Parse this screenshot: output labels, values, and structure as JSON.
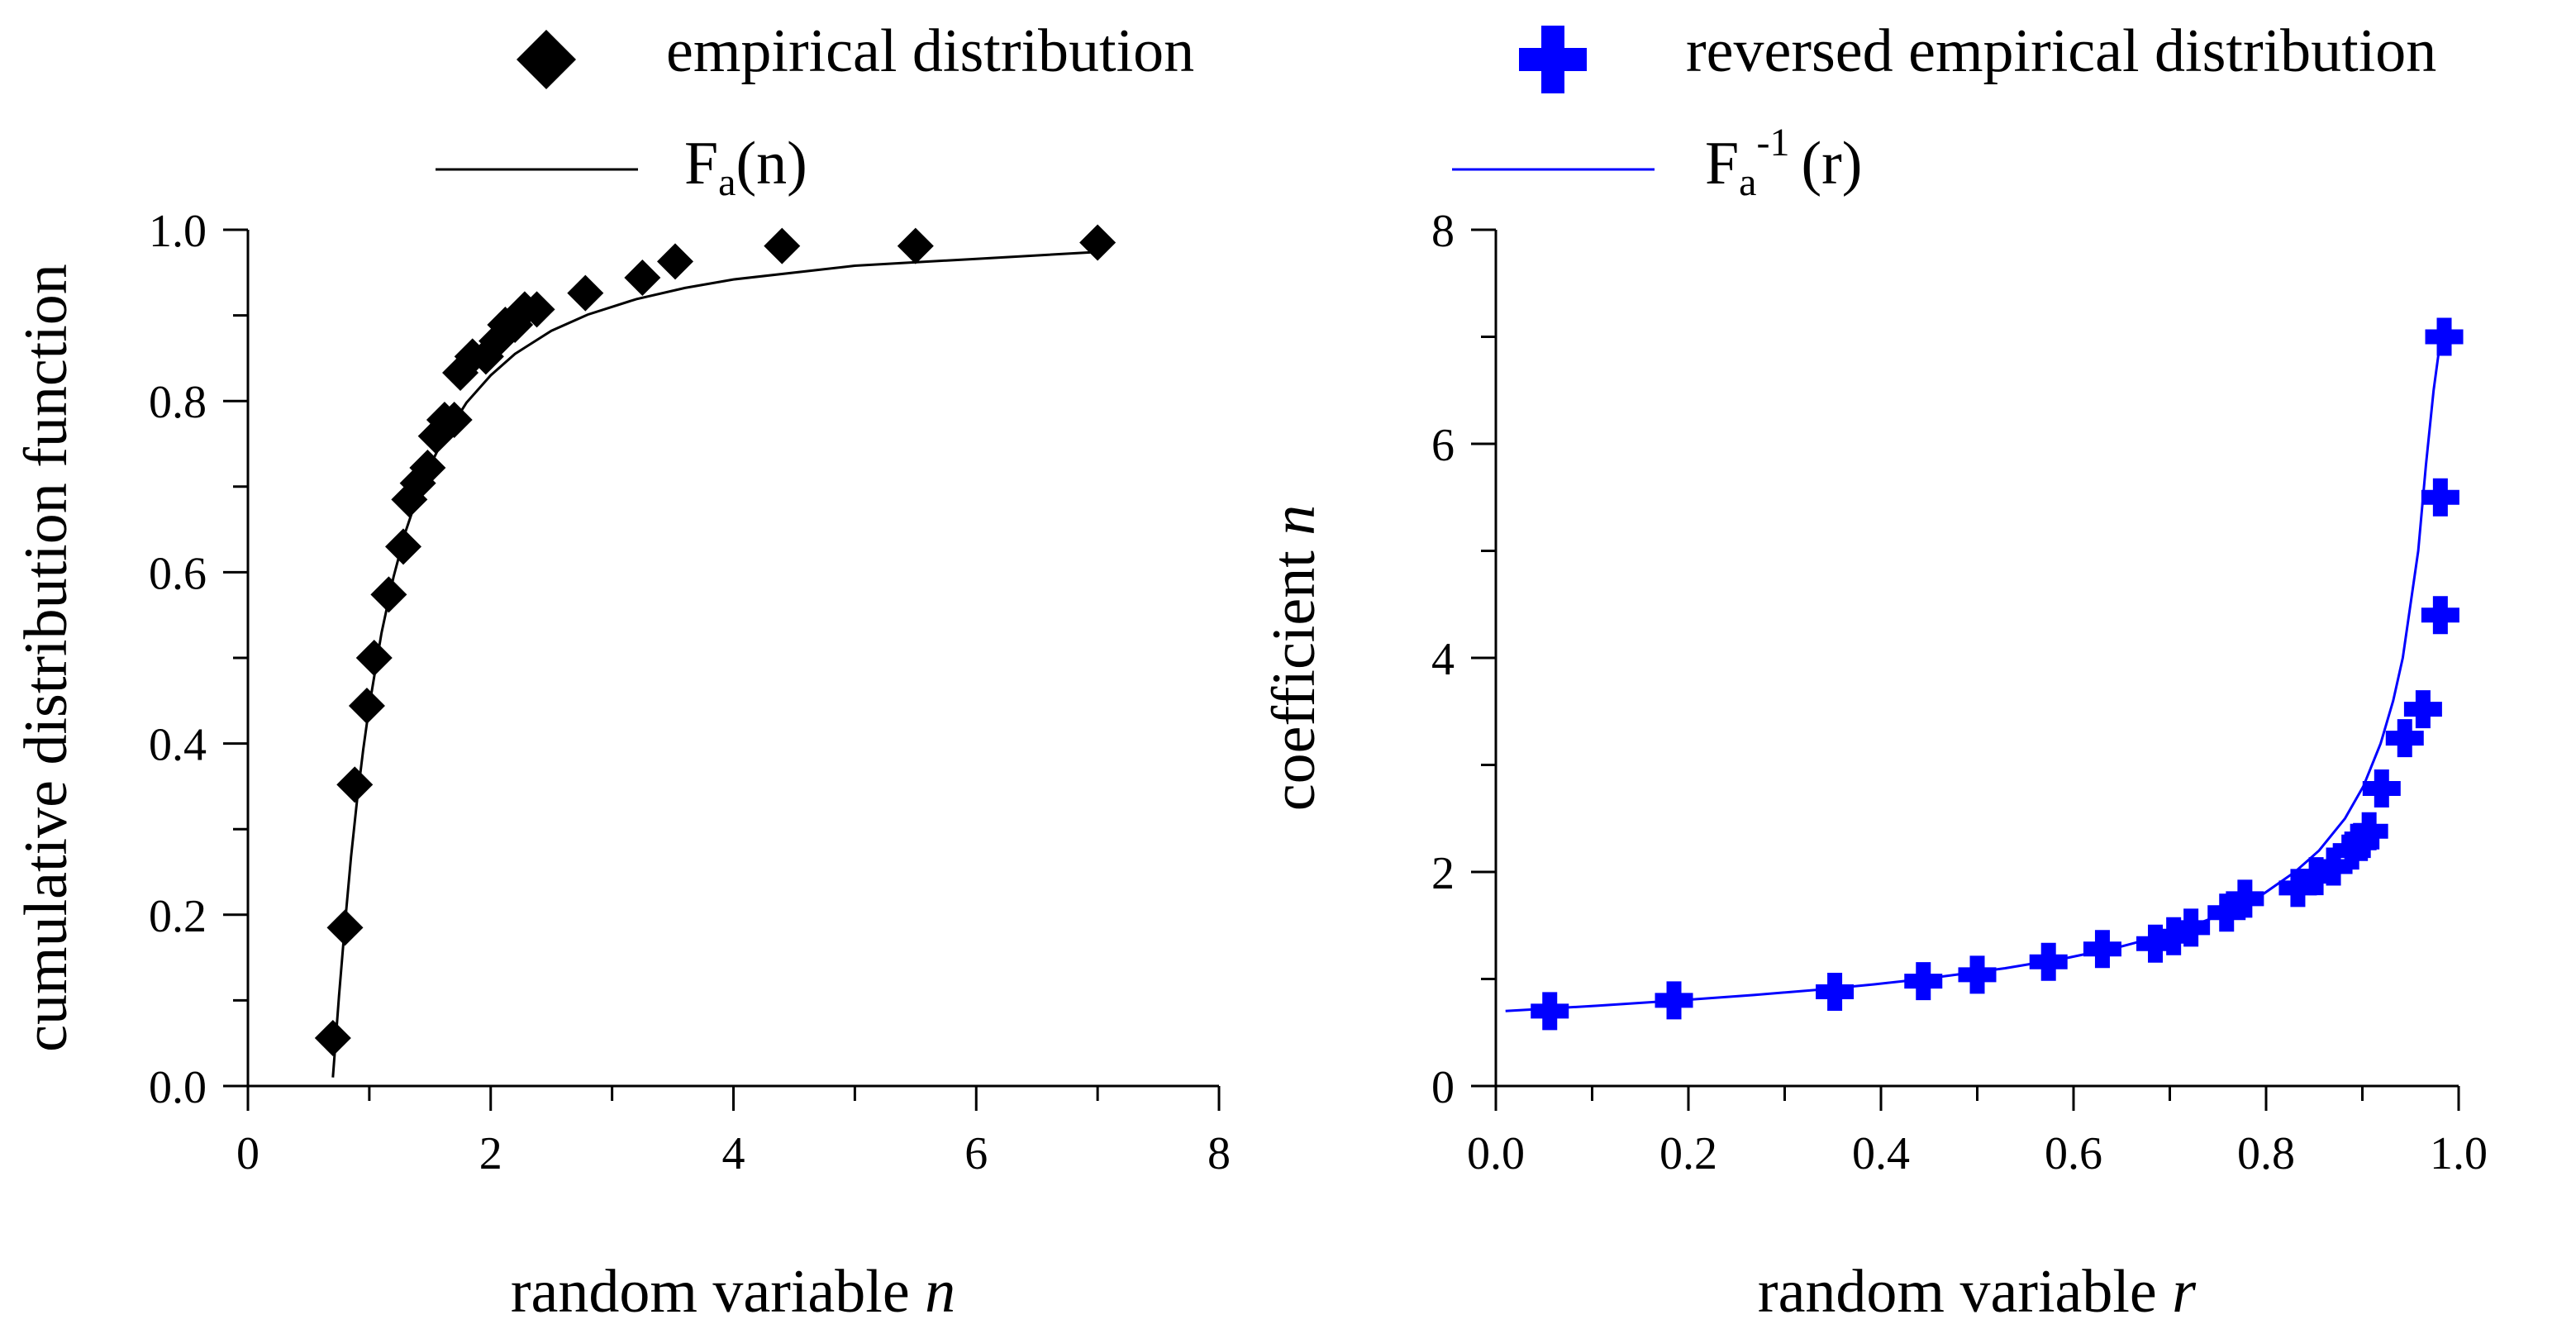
{
  "legend": {
    "left_marker_label": "empirical distribution",
    "left_line_label": "F",
    "left_line_label_sub": "a",
    "left_line_label_arg": "(n)",
    "right_marker_label": "reversed empirical distribution",
    "right_line_label": "F",
    "right_line_label_sub": "a",
    "right_line_label_sup": "-1",
    "right_line_label_arg": "(r)"
  },
  "colors": {
    "left_series": "#000000",
    "right_series": "#0000ff",
    "axis": "#000000"
  },
  "chart_data": [
    {
      "type": "scatter",
      "title": "",
      "xlabel": "random variable n",
      "ylabel": "cumulative distribution function",
      "xlim": [
        0,
        8
      ],
      "ylim": [
        0,
        1
      ],
      "xticks": [
        "0",
        "2",
        "4",
        "6",
        "8"
      ],
      "yticks": [
        "0.0",
        "0.2",
        "0.4",
        "0.6",
        "0.8",
        "1.0"
      ],
      "series": [
        {
          "name": "empirical distribution",
          "marker": "diamond",
          "x": [
            0.7,
            0.8,
            0.88,
            0.98,
            1.04,
            1.16,
            1.28,
            1.33,
            1.4,
            1.48,
            1.55,
            1.62,
            1.7,
            1.75,
            1.85,
            1.96,
            2.05,
            2.12,
            2.2,
            2.28,
            2.38,
            2.78,
            3.25,
            3.52,
            4.4,
            5.5,
            7.0
          ],
          "y": [
            0.056,
            0.185,
            0.352,
            0.444,
            0.5,
            0.574,
            0.63,
            0.685,
            0.704,
            0.722,
            0.759,
            0.778,
            0.778,
            0.833,
            0.852,
            0.852,
            0.87,
            0.889,
            0.889,
            0.907,
            0.907,
            0.926,
            0.944,
            0.963,
            0.981,
            0.981,
            0.985
          ]
        },
        {
          "name": "Fa(n)",
          "marker": "line",
          "x": [
            0.7,
            0.75,
            0.8,
            0.85,
            0.9,
            0.95,
            1.0,
            1.1,
            1.2,
            1.3,
            1.4,
            1.5,
            1.6,
            1.8,
            2.0,
            2.2,
            2.5,
            2.8,
            3.2,
            3.6,
            4.0,
            5.0,
            6.0,
            7.0
          ],
          "y": [
            0.01,
            0.105,
            0.19,
            0.268,
            0.335,
            0.393,
            0.444,
            0.529,
            0.595,
            0.648,
            0.69,
            0.724,
            0.753,
            0.798,
            0.83,
            0.855,
            0.882,
            0.901,
            0.919,
            0.932,
            0.942,
            0.958,
            0.966,
            0.974
          ]
        }
      ]
    },
    {
      "type": "scatter",
      "title": "",
      "xlabel": "random variable r",
      "ylabel": "coefficient n",
      "xlim": [
        0,
        1
      ],
      "ylim": [
        0,
        8
      ],
      "xticks": [
        "0.0",
        "0.2",
        "0.4",
        "0.6",
        "0.8",
        "1.0"
      ],
      "yticks": [
        "0",
        "2",
        "4",
        "6",
        "8"
      ],
      "series": [
        {
          "name": "reversed empirical distribution",
          "marker": "plus",
          "x": [
            0.056,
            0.185,
            0.352,
            0.444,
            0.5,
            0.574,
            0.63,
            0.685,
            0.704,
            0.722,
            0.759,
            0.778,
            0.833,
            0.852,
            0.87,
            0.889,
            0.898,
            0.907,
            0.92,
            0.944,
            0.963,
            0.981,
            0.981,
            0.985
          ],
          "y": [
            0.7,
            0.8,
            0.88,
            0.98,
            1.04,
            1.16,
            1.28,
            1.33,
            1.4,
            1.48,
            1.62,
            1.75,
            1.85,
            1.96,
            2.05,
            2.2,
            2.28,
            2.38,
            2.78,
            3.25,
            3.52,
            4.4,
            5.5,
            7.0
          ]
        },
        {
          "name": "Fa-1(r)",
          "marker": "line",
          "x": [
            0.01,
            0.105,
            0.19,
            0.268,
            0.335,
            0.393,
            0.444,
            0.529,
            0.595,
            0.648,
            0.69,
            0.724,
            0.753,
            0.798,
            0.83,
            0.855,
            0.882,
            0.901,
            0.919,
            0.932,
            0.942,
            0.958,
            0.966,
            0.974,
            0.98,
            0.983
          ],
          "y": [
            0.7,
            0.75,
            0.8,
            0.85,
            0.9,
            0.95,
            1.0,
            1.1,
            1.2,
            1.3,
            1.4,
            1.5,
            1.6,
            1.8,
            2.0,
            2.2,
            2.5,
            2.8,
            3.2,
            3.6,
            4.0,
            5.0,
            5.8,
            6.5,
            6.9,
            7.0
          ]
        }
      ]
    }
  ]
}
